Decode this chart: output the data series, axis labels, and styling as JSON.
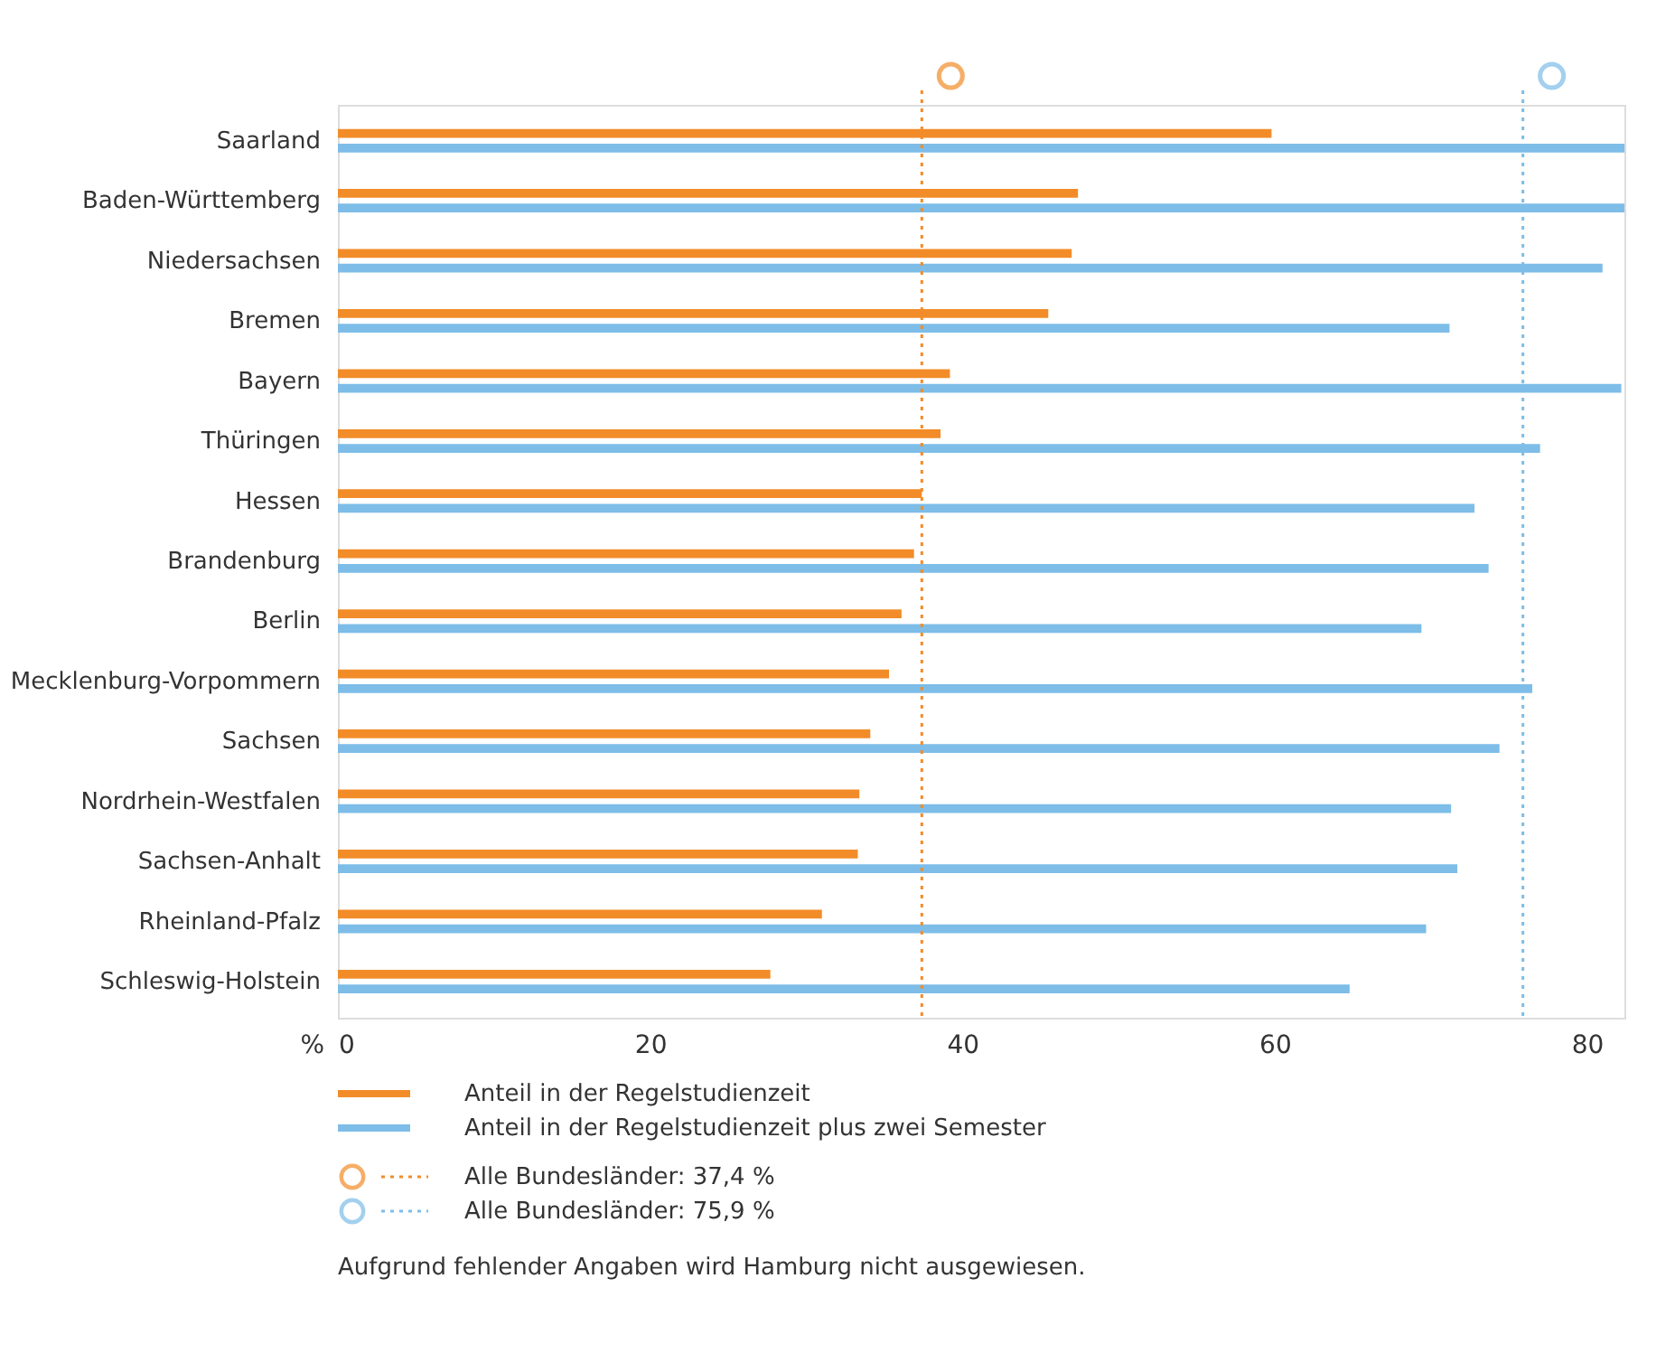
{
  "chart_data": {
    "type": "bar",
    "orientation": "horizontal",
    "categories": [
      "Saarland",
      "Baden-Württemberg",
      "Niedersachsen",
      "Bremen",
      "Bayern",
      "Thüringen",
      "Hessen",
      "Brandenburg",
      "Berlin",
      "Mecklenburg-Vorpommern",
      "Sachsen",
      "Nordrhein-Westfalen",
      "Sachsen-Anhalt",
      "Rheinland-Pfalz",
      "Schleswig-Holstein"
    ],
    "series": [
      {
        "name": "Anteil in der Regelstudienzeit",
        "color": "#f28c28",
        "values": [
          59.8,
          47.4,
          47.0,
          45.5,
          39.2,
          38.6,
          37.4,
          36.9,
          36.1,
          35.3,
          34.1,
          33.4,
          33.3,
          31.0,
          27.7
        ]
      },
      {
        "name": "Anteil in der Regelstudienzeit plus zwei Semester",
        "color": "#7dbde8",
        "values": [
          82.4,
          82.4,
          81.0,
          71.2,
          82.2,
          77.0,
          72.8,
          73.7,
          69.4,
          76.5,
          74.4,
          71.3,
          71.7,
          69.7,
          64.8
        ]
      }
    ],
    "xlabel": "%",
    "xlim": [
      0,
      82.4
    ],
    "xticks": [
      0,
      20,
      40,
      60,
      80
    ],
    "ref_lines": [
      {
        "axis": "x",
        "value": 37.4,
        "label": "Alle Bundesländer: 37,4 %",
        "line_style": "dotted",
        "color": "#f28c28"
      },
      {
        "axis": "x",
        "value": 75.9,
        "label": "Alle Bundesländer: 75,9 %",
        "line_style": "dotted",
        "color": "#7dbde8"
      }
    ],
    "legend": "bottom",
    "grid": false,
    "annotations": [
      "Aufgrund fehlender Angaben wird Hamburg nicht ausgewiesen."
    ]
  }
}
